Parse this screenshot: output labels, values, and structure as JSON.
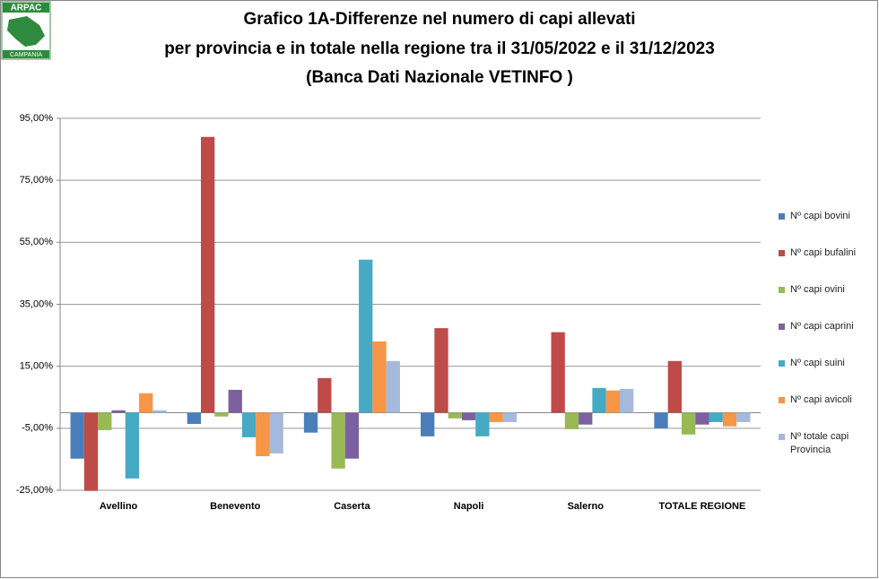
{
  "logo": {
    "top": "ARPAC",
    "bottom": "CAMPANIA"
  },
  "chart_data": {
    "type": "bar",
    "title": [
      "Grafico 1A-Differenze nel numero di capi allevati",
      "per provincia e in totale nella regione tra il 31/05/2022 e il 31/12/2023",
      "(Banca Dati Nazionale VETINFO )"
    ],
    "categories": [
      "Avellino",
      "Benevento",
      "Caserta",
      "Napoli",
      "Salerno",
      "TOTALE REGIONE"
    ],
    "series": [
      {
        "name": "Nº capi bovini",
        "color": "#4a7ebb",
        "values": [
          -14.8,
          -3.6,
          -6.4,
          -7.6,
          0,
          -5
        ]
      },
      {
        "name": "Nº capi bufalini",
        "color": "#be4b48",
        "values": [
          -25.2,
          89,
          11.2,
          27.3,
          26,
          16.7
        ]
      },
      {
        "name": "Nº capi ovini",
        "color": "#98b954",
        "values": [
          -5.6,
          -1.2,
          -18,
          -1.8,
          -5.3,
          -7
        ]
      },
      {
        "name": "Nº capi caprini",
        "color": "#7d60a0",
        "values": [
          0.8,
          7.4,
          -14.8,
          -2.4,
          -3.8,
          -3.8
        ]
      },
      {
        "name": "Nº capi suini",
        "color": "#46aac4",
        "values": [
          -21.2,
          -7.9,
          49.4,
          -7.6,
          8,
          -3
        ]
      },
      {
        "name": "Nº capi avicoli",
        "color": "#f79646",
        "values": [
          6.3,
          -14,
          23,
          -3,
          7.2,
          -4.4
        ]
      },
      {
        "name": "Nº totale capi Provincia",
        "color": "#a5b9dc",
        "values": [
          0.8,
          -13.1,
          16.7,
          -3,
          7.7,
          -3
        ]
      }
    ],
    "ylim": [
      -25,
      95
    ],
    "yticks": [
      {
        "value": -25,
        "label": "-25,00%"
      },
      {
        "value": -5,
        "label": "-5,00%"
      },
      {
        "value": 15,
        "label": "15,00%"
      },
      {
        "value": 35,
        "label": "35,00%"
      },
      {
        "value": 55,
        "label": "55,00%"
      },
      {
        "value": 75,
        "label": "75,00%"
      },
      {
        "value": 95,
        "label": "95,00%"
      }
    ],
    "grid": true
  }
}
